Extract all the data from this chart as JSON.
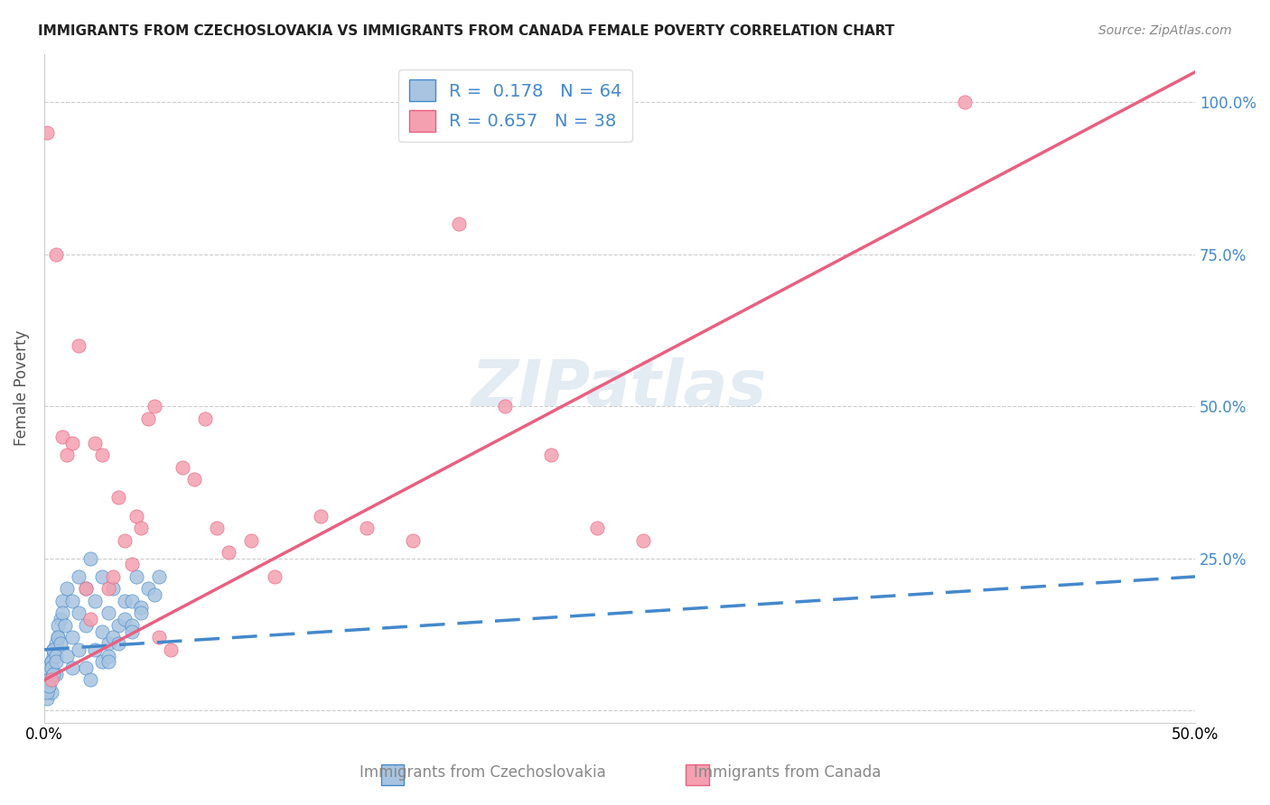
{
  "title": "IMMIGRANTS FROM CZECHOSLOVAKIA VS IMMIGRANTS FROM CANADA FEMALE POVERTY CORRELATION CHART",
  "source": "Source: ZipAtlas.com",
  "xlabel_blue": "Immigrants from Czechoslovakia",
  "xlabel_pink": "Immigrants from Canada",
  "ylabel": "Female Poverty",
  "xlim": [
    0.0,
    0.5
  ],
  "ylim": [
    -0.02,
    1.08
  ],
  "yticks": [
    0.0,
    0.25,
    0.5,
    0.75,
    1.0
  ],
  "ytick_labels": [
    "",
    "25.0%",
    "50.0%",
    "75.0%",
    "100.0%"
  ],
  "xticks": [
    0.0,
    0.1,
    0.2,
    0.3,
    0.4,
    0.5
  ],
  "xtick_labels": [
    "0.0%",
    "",
    "",
    "",
    "",
    "50.0%"
  ],
  "watermark": "ZIPatlas",
  "legend_R1": "R =  0.178",
  "legend_N1": "N = 64",
  "legend_R2": "R = 0.657",
  "legend_N2": "N = 38",
  "color_blue": "#a8c4e0",
  "color_pink": "#f4a0b0",
  "color_line_blue": "#4488cc",
  "color_line_pink": "#e86080",
  "blue_scatter_x": [
    0.002,
    0.003,
    0.001,
    0.004,
    0.005,
    0.003,
    0.006,
    0.002,
    0.001,
    0.004,
    0.007,
    0.005,
    0.003,
    0.002,
    0.001,
    0.008,
    0.006,
    0.004,
    0.003,
    0.002,
    0.01,
    0.008,
    0.006,
    0.005,
    0.004,
    0.015,
    0.012,
    0.009,
    0.007,
    0.005,
    0.02,
    0.018,
    0.015,
    0.012,
    0.01,
    0.025,
    0.022,
    0.018,
    0.015,
    0.012,
    0.03,
    0.028,
    0.025,
    0.022,
    0.018,
    0.035,
    0.032,
    0.028,
    0.025,
    0.02,
    0.04,
    0.038,
    0.035,
    0.03,
    0.028,
    0.045,
    0.042,
    0.038,
    0.032,
    0.028,
    0.05,
    0.048,
    0.042,
    0.038
  ],
  "blue_scatter_y": [
    0.05,
    0.08,
    0.02,
    0.1,
    0.06,
    0.03,
    0.12,
    0.04,
    0.07,
    0.09,
    0.15,
    0.11,
    0.08,
    0.05,
    0.03,
    0.18,
    0.14,
    0.1,
    0.07,
    0.04,
    0.2,
    0.16,
    0.12,
    0.09,
    0.06,
    0.22,
    0.18,
    0.14,
    0.11,
    0.08,
    0.25,
    0.2,
    0.16,
    0.12,
    0.09,
    0.22,
    0.18,
    0.14,
    0.1,
    0.07,
    0.2,
    0.16,
    0.13,
    0.1,
    0.07,
    0.18,
    0.14,
    0.11,
    0.08,
    0.05,
    0.22,
    0.18,
    0.15,
    0.12,
    0.09,
    0.2,
    0.17,
    0.14,
    0.11,
    0.08,
    0.22,
    0.19,
    0.16,
    0.13
  ],
  "pink_scatter_x": [
    0.001,
    0.003,
    0.005,
    0.008,
    0.01,
    0.012,
    0.015,
    0.018,
    0.02,
    0.022,
    0.025,
    0.028,
    0.03,
    0.032,
    0.035,
    0.038,
    0.04,
    0.042,
    0.045,
    0.048,
    0.05,
    0.055,
    0.06,
    0.065,
    0.07,
    0.075,
    0.08,
    0.09,
    0.1,
    0.12,
    0.14,
    0.16,
    0.18,
    0.2,
    0.22,
    0.24,
    0.26,
    0.4
  ],
  "pink_scatter_y": [
    0.95,
    0.05,
    0.75,
    0.45,
    0.42,
    0.44,
    0.6,
    0.2,
    0.15,
    0.44,
    0.42,
    0.2,
    0.22,
    0.35,
    0.28,
    0.24,
    0.32,
    0.3,
    0.48,
    0.5,
    0.12,
    0.1,
    0.4,
    0.38,
    0.48,
    0.3,
    0.26,
    0.28,
    0.22,
    0.32,
    0.3,
    0.28,
    0.8,
    0.5,
    0.42,
    0.3,
    0.28,
    1.0
  ],
  "blue_trend_x": [
    0.0,
    0.5
  ],
  "blue_trend_y": [
    0.1,
    0.22
  ],
  "pink_trend_x": [
    0.0,
    0.5
  ],
  "pink_trend_y": [
    0.05,
    1.05
  ]
}
